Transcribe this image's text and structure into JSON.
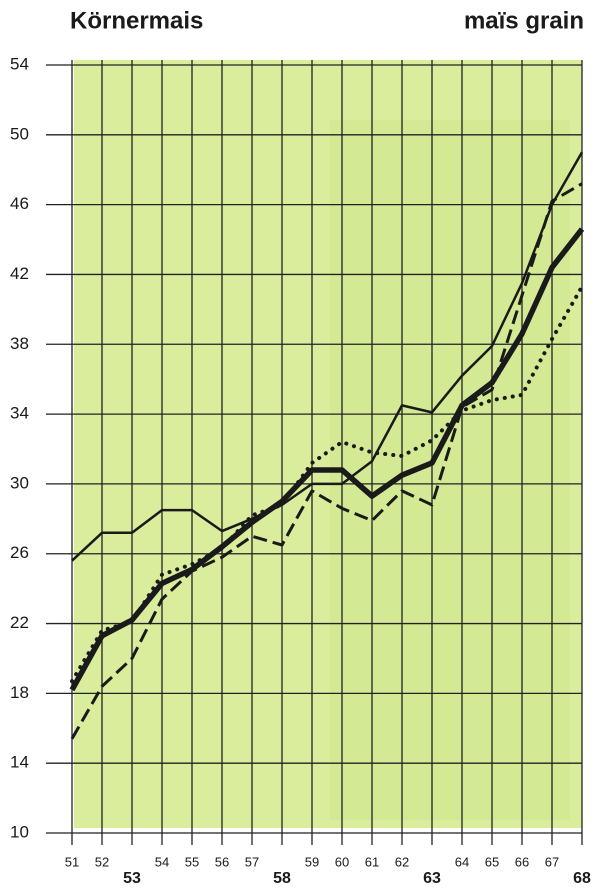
{
  "chart_data": {
    "type": "line",
    "title": "Körnermais",
    "subtitle": "maïs grain",
    "categories": [
      "51",
      "52",
      "53",
      "54",
      "55",
      "56",
      "57",
      "58",
      "59",
      "60",
      "61",
      "62",
      "63",
      "64",
      "65",
      "66",
      "67",
      "68"
    ],
    "ylim": [
      10,
      54
    ],
    "yticks": [
      10,
      14,
      18,
      22,
      26,
      30,
      34,
      38,
      42,
      46,
      50,
      54
    ],
    "grid": true,
    "series": [
      {
        "color": "#1a1a1a",
        "style": "thin",
        "values": [
          25.6,
          27.2,
          27.2,
          28.5,
          28.5,
          27.3,
          28.0,
          28.8,
          30.0,
          30.0,
          31.3,
          34.5,
          34.1,
          36.2,
          37.9,
          41.5,
          46.0,
          49.0
        ]
      },
      {
        "color": "#1a1a1a",
        "style": "thick",
        "values": [
          18.2,
          21.3,
          22.2,
          24.3,
          25.1,
          26.4,
          27.8,
          29.0,
          30.8,
          30.8,
          29.3,
          30.5,
          31.2,
          34.5,
          35.8,
          38.6,
          42.4,
          44.6
        ]
      },
      {
        "color": "#1a1a1a",
        "style": "dashed",
        "values": [
          15.4,
          18.4,
          20.0,
          23.4,
          25.0,
          25.8,
          27.0,
          26.5,
          29.6,
          28.6,
          27.9,
          29.6,
          28.8,
          34.4,
          35.4,
          40.8,
          46.2,
          47.2
        ]
      },
      {
        "color": "#1a1a1a",
        "style": "dotted",
        "values": [
          18.7,
          21.6,
          22.1,
          24.8,
          25.4,
          26.3,
          28.2,
          28.8,
          31.2,
          32.4,
          31.8,
          31.6,
          32.5,
          34.2,
          34.8,
          35.1,
          38.3,
          41.3
        ]
      }
    ]
  }
}
